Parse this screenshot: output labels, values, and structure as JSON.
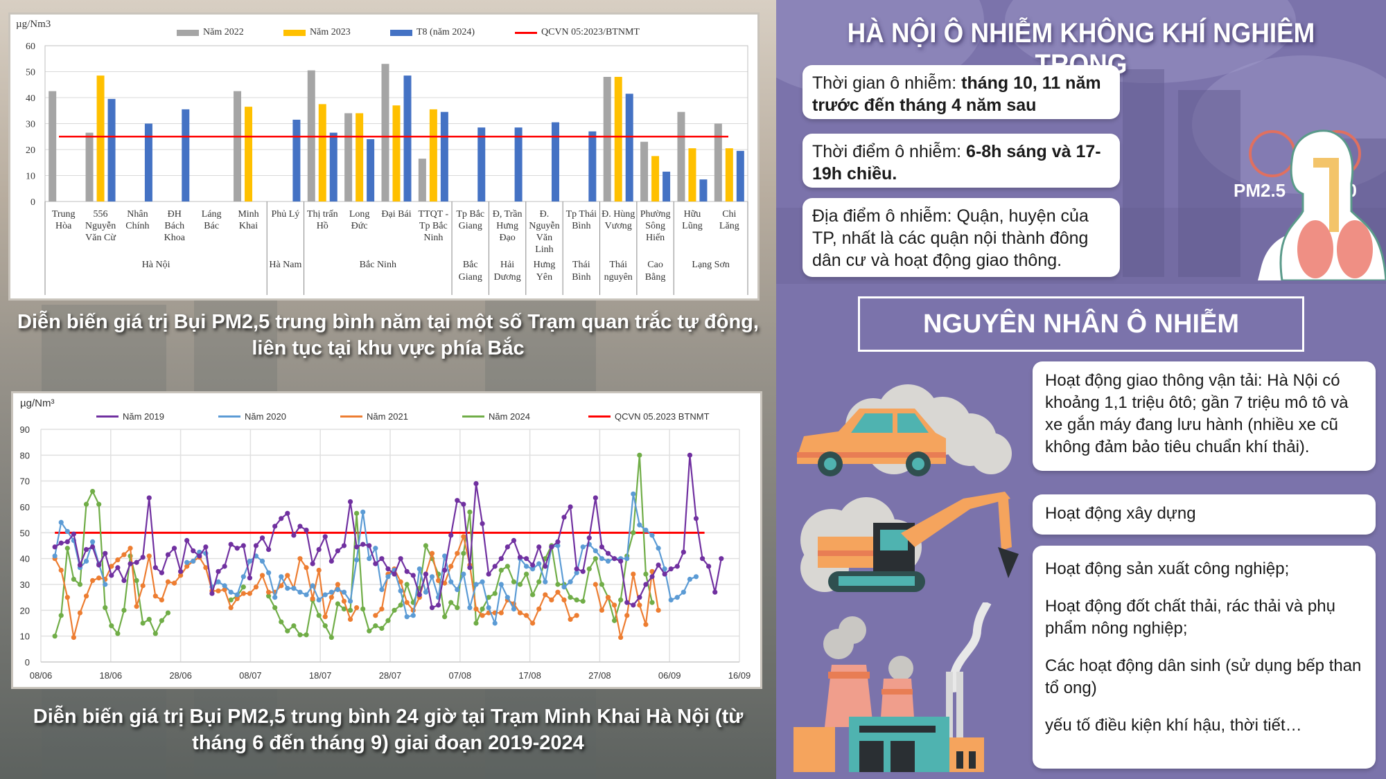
{
  "left_panel": {
    "bar_chart_caption": "Diễn biến giá trị Bụi PM2,5 trung bình năm tại một số Trạm quan trắc tự động, liên tục tại khu vực phía Bắc",
    "line_chart_caption": "Diễn biến giá trị Bụi PM2,5 trung bình 24 giờ tại Trạm Minh Khai Hà Nội (từ tháng 6 đến tháng 9) giai đoạn 2019-2024"
  },
  "chart_data": [
    {
      "type": "bar",
      "title": "Diễn biến giá trị Bụi PM2,5 trung bình năm tại một số Trạm quan trắc tự động, liên tục tại khu vực phía Bắc",
      "ylabel": "µg/Nm3",
      "xlabel": "",
      "ylim": [
        0,
        60
      ],
      "yticks": [
        0,
        10,
        20,
        30,
        40,
        50,
        60
      ],
      "grid": true,
      "legend_position": "top",
      "categories": [
        "Trung Hòa",
        "556 Nguyễn Văn Cừ",
        "Nhân Chính",
        "ĐH Bách Khoa",
        "Láng Bác",
        "Minh Khai",
        "Phủ Lý",
        "Thị trấn Hồ",
        "Long Đức",
        "Đại Bái",
        "TTQT - Tp Bắc Ninh",
        "Tp Bắc Giang",
        "Đ, Trần Hưng Đạo",
        "Đ. Nguyễn Văn Linh",
        "Tp Thái Bình",
        "Đ. Hùng Vương",
        "Phường Sông Hiến",
        "Hữu Lũng",
        "Chi Lăng"
      ],
      "category_lines": [
        [
          "Trung",
          "Hòa"
        ],
        [
          "556",
          "Nguyễn",
          "Văn Cừ"
        ],
        [
          "Nhân",
          "Chính"
        ],
        [
          "ĐH",
          "Bách",
          "Khoa"
        ],
        [
          "Láng",
          "Bác"
        ],
        [
          "Minh",
          "Khai"
        ],
        [
          "Phủ Lý"
        ],
        [
          "Thị trấn",
          "Hồ"
        ],
        [
          "Long",
          "Đức"
        ],
        [
          "Đại Bái"
        ],
        [
          "TTQT -",
          "Tp Bắc",
          "Ninh"
        ],
        [
          "Tp Bắc",
          "Giang"
        ],
        [
          "Đ, Trần",
          "Hưng",
          "Đạo"
        ],
        [
          "Đ.",
          "Nguyễn",
          "Văn",
          "Linh"
        ],
        [
          "Tp Thái",
          "Bình"
        ],
        [
          "Đ. Hùng",
          "Vương"
        ],
        [
          "Phường",
          "Sông",
          "Hiến"
        ],
        [
          "Hữu",
          "Lũng"
        ],
        [
          "Chi",
          "Lăng"
        ]
      ],
      "groups": [
        {
          "name": "Hà Nội",
          "lines": [
            "Hà Nội"
          ],
          "from": 0,
          "to": 5
        },
        {
          "name": "Hà Nam",
          "lines": [
            "Hà Nam"
          ],
          "from": 6,
          "to": 6
        },
        {
          "name": "Bắc Ninh",
          "lines": [
            "Bắc Ninh"
          ],
          "from": 7,
          "to": 10
        },
        {
          "name": "Bắc Giang",
          "lines": [
            "Bắc",
            "Giang"
          ],
          "from": 11,
          "to": 11
        },
        {
          "name": "Hải Dương",
          "lines": [
            "Hải",
            "Dương"
          ],
          "from": 12,
          "to": 12
        },
        {
          "name": "Hưng Yên",
          "lines": [
            "Hưng",
            "Yên"
          ],
          "from": 13,
          "to": 13
        },
        {
          "name": "Thái Bình",
          "lines": [
            "Thái",
            "Bình"
          ],
          "from": 14,
          "to": 14
        },
        {
          "name": "Thái nguyên",
          "lines": [
            "Thái",
            "nguyên"
          ],
          "from": 15,
          "to": 15
        },
        {
          "name": "Cao Bằng",
          "lines": [
            "Cao",
            "Bằng"
          ],
          "from": 16,
          "to": 16
        },
        {
          "name": "Lạng Sơn",
          "lines": [
            "Lạng Sơn"
          ],
          "from": 17,
          "to": 18
        }
      ],
      "series": [
        {
          "name": "Năm 2022",
          "color": "#a5a5a5",
          "values": [
            42.5,
            26.5,
            null,
            null,
            null,
            42.5,
            null,
            50.5,
            34,
            53,
            16.5,
            null,
            null,
            null,
            null,
            48,
            23,
            34.5,
            30
          ]
        },
        {
          "name": "Năm 2023",
          "color": "#ffc000",
          "values": [
            null,
            48.5,
            null,
            null,
            null,
            36.5,
            null,
            37.5,
            34,
            37,
            35.5,
            null,
            null,
            null,
            null,
            48,
            17.5,
            20.5,
            20.5
          ]
        },
        {
          "name": "T8 (năm 2024)",
          "color": "#4472c4",
          "values": [
            null,
            39.5,
            30,
            35.5,
            null,
            null,
            31.5,
            26.5,
            24,
            48.5,
            34.5,
            28.5,
            28.5,
            30.5,
            27,
            41.5,
            11.5,
            8.5,
            19.5
          ]
        }
      ],
      "reference_line": {
        "name": "QCVN 05:2023/BTNMT",
        "value": 25,
        "color": "#ff0000"
      }
    },
    {
      "type": "line",
      "title": "Diễn biến giá trị Bụi PM2,5 trung bình 24 giờ tại Trạm Minh Khai Hà Nội (từ tháng 6 đến tháng 9) giai đoạn 2019-2024",
      "ylabel": "µg/Nm³",
      "xlabel": "",
      "ylim": [
        0,
        90
      ],
      "yticks": [
        0,
        10,
        20,
        30,
        40,
        50,
        60,
        70,
        80,
        90
      ],
      "x_tick_labels": [
        "08/06",
        "18/06",
        "28/06",
        "08/07",
        "18/07",
        "28/07",
        "07/08",
        "17/08",
        "27/08",
        "06/09",
        "16/09"
      ],
      "x_day_range": [
        0,
        100
      ],
      "grid": true,
      "legend_position": "top",
      "series": [
        {
          "name": "Năm 2019",
          "color": "#7030a0",
          "start_day": 2,
          "values": [
            44.5,
            46,
            46.5,
            49.5,
            37.5,
            43.5,
            44.5,
            37.5,
            42,
            33.5,
            36.5,
            31.5,
            38,
            38.5,
            40.5,
            63.5,
            36.5,
            34.5,
            41.5,
            44,
            35,
            47,
            43,
            41,
            44.5,
            26.5,
            35,
            37,
            45.5,
            44,
            45,
            32.5,
            45,
            48,
            43.5,
            52.5,
            55.5,
            57.5,
            49,
            52.5,
            51,
            38,
            43.5,
            48.5,
            39,
            43,
            45,
            62,
            44.5,
            45.5,
            45,
            38,
            40,
            36,
            34,
            40,
            35,
            33.5,
            26,
            34,
            21,
            22,
            35.5,
            49,
            62.5,
            61,
            36.5,
            69,
            53.5,
            34,
            37,
            40,
            44.5,
            47,
            40.5,
            40,
            37.5,
            44.5,
            37,
            44.5,
            46.5,
            56,
            60,
            36,
            35,
            48,
            63.5,
            44.5,
            42,
            40,
            39,
            23,
            22,
            25,
            30,
            33,
            37.5,
            34,
            36,
            37,
            42.5,
            80,
            55.5,
            40,
            37,
            27,
            40
          ]
        },
        {
          "name": "Năm 2020",
          "color": "#5b9bd5",
          "start_day": 2,
          "values": [
            41,
            54,
            50.5,
            47,
            36.5,
            39,
            46.5,
            38,
            30,
            null,
            null,
            null,
            null,
            null,
            null,
            null,
            null,
            null,
            null,
            null,
            null,
            38.5,
            39,
            42.5,
            42,
            29,
            31,
            29.5,
            27,
            26,
            33,
            39,
            41,
            39,
            34.5,
            25,
            33,
            28.5,
            28.5,
            27,
            26,
            29.5,
            24,
            26,
            27,
            28,
            27,
            23.5,
            39.5,
            58,
            40,
            44,
            28,
            33,
            35.5,
            27.5,
            17.5,
            18,
            36,
            27,
            33,
            25,
            41,
            31,
            28,
            34,
            21,
            30,
            31,
            21,
            15,
            30,
            25,
            20.5,
            40,
            37,
            36,
            38,
            31,
            44.5,
            45,
            29,
            31,
            34.5,
            44.5,
            45.5,
            43,
            40,
            39,
            40,
            40,
            40,
            65,
            53,
            51,
            49,
            44,
            36,
            24,
            25,
            27,
            32,
            33
          ]
        },
        {
          "name": "Năm 2021",
          "color": "#ed7d31",
          "start_day": 2,
          "values": [
            40,
            35.5,
            25,
            9.5,
            19,
            25.5,
            31.5,
            32.5,
            32,
            37,
            39.5,
            41.5,
            44,
            21.5,
            29.5,
            41,
            25.5,
            24,
            31,
            30.5,
            33.5,
            37,
            39,
            40.5,
            36.5,
            27.5,
            27.5,
            28,
            21,
            24.5,
            26.5,
            26.5,
            29,
            33.5,
            27,
            27,
            29.5,
            33.5,
            28.5,
            40,
            36.5,
            24.5,
            35.5,
            17.5,
            25,
            30,
            23.5,
            16.5,
            21,
            null,
            null,
            18,
            20.5,
            34,
            36,
            31,
            23,
            20,
            25,
            34,
            42,
            31.5,
            30.5,
            37,
            42,
            48.5,
            37.5,
            20.5,
            18,
            19,
            19,
            19,
            24,
            22.5,
            19,
            18,
            15,
            20.5,
            26,
            24,
            27,
            24,
            16.5,
            18,
            null,
            null,
            30,
            20,
            25,
            22,
            9.5,
            18,
            34,
            22,
            14.5,
            35,
            20
          ]
        },
        {
          "name": "Năm 2024",
          "color": "#70ad47",
          "start_day": 2,
          "values": [
            10,
            18,
            44,
            32,
            30,
            61,
            66,
            61,
            21,
            14,
            11,
            20,
            41,
            31.5,
            15,
            16.5,
            11,
            16,
            19,
            null,
            null,
            null,
            null,
            null,
            null,
            null,
            null,
            null,
            24,
            25.5,
            29,
            null,
            null,
            null,
            25.5,
            21,
            15.5,
            12,
            14,
            10.5,
            10.5,
            24,
            18,
            14,
            9.5,
            22.5,
            20.5,
            20,
            57.5,
            20.5,
            12,
            14,
            13,
            16,
            20,
            22,
            30,
            23,
            28.5,
            45,
            40,
            34,
            17.5,
            23,
            21,
            42,
            58,
            15,
            20.5,
            25,
            26.5,
            35.5,
            37,
            31,
            30,
            34,
            26,
            31,
            40,
            45,
            30,
            30,
            25,
            24,
            23.5,
            36,
            40,
            30,
            25,
            16,
            24,
            41,
            50,
            80,
            34,
            23
          ]
        }
      ],
      "reference_line": {
        "name": "QCVN 05.2023 BTNMT",
        "value": 50,
        "color": "#ff0000"
      }
    }
  ],
  "right_panel": {
    "title": "HÀ NỘI Ô NHIỄM KHÔNG KHÍ NGHIÊM TRỌNG",
    "info_cards": [
      {
        "label": "Thời gian ô nhiễm: ",
        "value": "tháng 10, 11 năm trước đến tháng 4 năm sau"
      },
      {
        "label": "Thời điểm ô nhiễm: ",
        "value": "6-8h sáng và 17-19h chiều."
      },
      {
        "label": "Địa điểm ô nhiễm: ",
        "value": "Quận, huyện của TP, nhất là các quận nội thành đông dân cư và hoạt động giao thông."
      }
    ],
    "particles": [
      {
        "label": "PM2.5"
      },
      {
        "label": "PM10"
      }
    ],
    "causes_title": "NGUYÊN NHÂN Ô NHIỄM",
    "causes": [
      {
        "text": "Hoạt động giao thông vận tải: Hà Nội có khoảng 1,1 triệu ôtô; gần 7 triệu mô tô và xe gắn máy đang lưu hành (nhiều xe cũ không đảm bảo tiêu chuẩn khí thải)."
      },
      {
        "text": "Hoạt động xây dựng"
      },
      {
        "text": "Hoạt động sản xuất công nghiệp;"
      },
      {
        "text": "Hoạt động đốt chất thải, rác thải và phụ phẩm nông nghiệp;"
      },
      {
        "text": "Các hoạt động dân sinh (sử dụng bếp than tổ ong)"
      },
      {
        "text": "yếu tố điều kiện khí hậu, thời tiết…"
      }
    ],
    "colors": {
      "background": "#7b73ab",
      "card": "#ffffff",
      "pm_ring": "#e07060"
    }
  }
}
